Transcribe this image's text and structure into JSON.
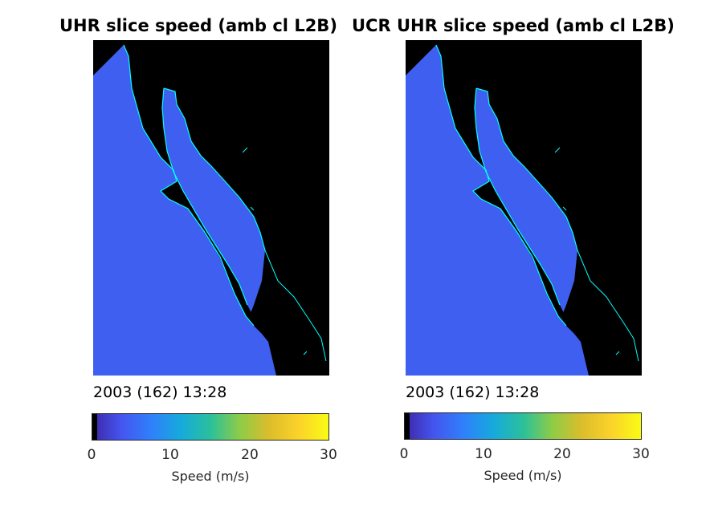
{
  "chart_data": [
    {
      "type": "heatmap",
      "title": "UHR slice speed (amb cl L2B)",
      "date_text": "2003 (162) 13:28",
      "colorbar": {
        "label": "Speed (m/s)",
        "range": [
          0,
          30
        ],
        "ticks": [
          0,
          10,
          20,
          30
        ],
        "colormap": [
          "#3e26a8",
          "#4456f0",
          "#2f80fb",
          "#16aadc",
          "#2ac09b",
          "#8ecc47",
          "#dcbd2b",
          "#fbd32a",
          "#f9fb15"
        ]
      }
    },
    {
      "type": "heatmap",
      "title": "UCR UHR slice speed (amb cl L2B)",
      "date_text": "2003 (162) 13:28",
      "colorbar": {
        "label": "Speed (m/s)",
        "range": [
          0,
          30
        ],
        "ticks": [
          0,
          10,
          20,
          30
        ],
        "colormap": [
          "#3e26a8",
          "#4456f0",
          "#2f80fb",
          "#16aadc",
          "#2ac09b",
          "#8ecc47",
          "#dcbd2b",
          "#fbd32a",
          "#f9fb15"
        ]
      }
    }
  ],
  "colors": {
    "coastline": "#00ffff",
    "land": "#000000",
    "ocean_speed": "#3f5ff0"
  }
}
